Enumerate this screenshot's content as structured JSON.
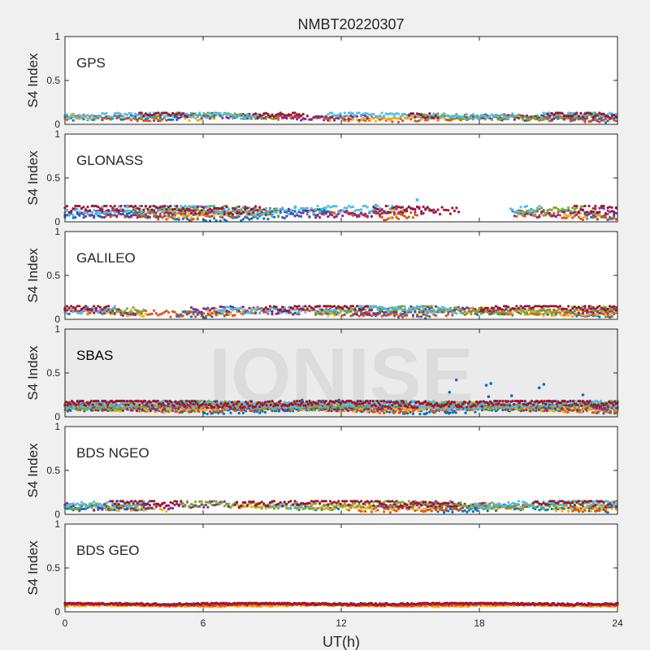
{
  "figure": {
    "title": "NMBT20220307",
    "xlabel": "UT(h)",
    "xticks": [
      "0",
      "6",
      "12",
      "18",
      "24"
    ],
    "watermark": "IONISE",
    "background": "#f0f0f0",
    "axes_background": "#ffffff",
    "axis_color": "#262626"
  },
  "chart_data": [
    {
      "type": "scatter",
      "panel_label": "GPS",
      "ylabel": "S4 Index",
      "yticks": [
        "0",
        "0.5",
        "1"
      ],
      "xlim": [
        0,
        24
      ],
      "ylim": [
        0,
        1
      ],
      "series_colors": [
        "#0072BD",
        "#D95319",
        "#EDB120",
        "#7E2F8E",
        "#77AC30",
        "#4DBEEE",
        "#A2142F"
      ],
      "typical_range": [
        0.03,
        0.13
      ]
    },
    {
      "type": "scatter",
      "panel_label": "GLONASS",
      "ylabel": "S4 Index",
      "yticks": [
        "0",
        "0.5",
        "1"
      ],
      "xlim": [
        0,
        24
      ],
      "ylim": [
        0,
        1
      ],
      "series_colors": [
        "#0072BD",
        "#D95319",
        "#EDB120",
        "#7E2F8E",
        "#77AC30",
        "#4DBEEE",
        "#A2142F"
      ],
      "typical_range": [
        0.03,
        0.18
      ],
      "peaks": [
        {
          "x": 2.7,
          "y": 0.17
        },
        {
          "x": 10.0,
          "y": 0.17
        },
        {
          "x": 13.5,
          "y": 0.19
        },
        {
          "x": 15.3,
          "y": 0.25
        }
      ]
    },
    {
      "type": "scatter",
      "panel_label": "GALILEO",
      "ylabel": "S4 Index",
      "yticks": [
        "0",
        "0.5",
        "1"
      ],
      "xlim": [
        0,
        24
      ],
      "ylim": [
        0,
        1
      ],
      "series_colors": [
        "#0072BD",
        "#D95319",
        "#EDB120",
        "#7E2F8E",
        "#77AC30",
        "#4DBEEE",
        "#A2142F"
      ],
      "typical_range": [
        0.03,
        0.15
      ]
    },
    {
      "type": "scatter",
      "panel_label": "SBAS",
      "ylabel": "S4 Index",
      "yticks": [
        "0",
        "0.5",
        "1"
      ],
      "xlim": [
        0,
        24
      ],
      "ylim": [
        0,
        1
      ],
      "series_colors": [
        "#0072BD",
        "#D95319",
        "#EDB120",
        "#7E2F8E",
        "#77AC30",
        "#4DBEEE",
        "#A2142F"
      ],
      "typical_range": [
        0.05,
        0.18
      ],
      "outliers": [
        {
          "x": 10.3,
          "y": 0.19
        },
        {
          "x": 11.2,
          "y": 0.18
        },
        {
          "x": 11.9,
          "y": 0.19
        },
        {
          "x": 16.7,
          "y": 0.28
        },
        {
          "x": 17.0,
          "y": 0.42
        },
        {
          "x": 18.3,
          "y": 0.36
        },
        {
          "x": 18.5,
          "y": 0.38
        },
        {
          "x": 19.4,
          "y": 0.24
        },
        {
          "x": 20.6,
          "y": 0.33
        },
        {
          "x": 20.8,
          "y": 0.37
        },
        {
          "x": 22.5,
          "y": 0.25
        },
        {
          "x": 18.4,
          "y": 0.23
        }
      ]
    },
    {
      "type": "scatter",
      "panel_label": "BDS NGEO",
      "ylabel": "S4 Index",
      "yticks": [
        "0",
        "0.5",
        "1"
      ],
      "xlim": [
        0,
        24
      ],
      "ylim": [
        0,
        1
      ],
      "series_colors": [
        "#0072BD",
        "#D95319",
        "#EDB120",
        "#7E2F8E",
        "#77AC30",
        "#4DBEEE",
        "#A2142F"
      ],
      "typical_range": [
        0.03,
        0.15
      ]
    },
    {
      "type": "scatter",
      "panel_label": "BDS GEO",
      "ylabel": "S4 Index",
      "yticks": [
        "0",
        "0.5",
        "1"
      ],
      "xlim": [
        0,
        24
      ],
      "ylim": [
        0,
        1
      ],
      "series_colors": [
        "#EDB120",
        "#D95319",
        "#A2142F"
      ],
      "typical_range": [
        0.06,
        0.1
      ]
    }
  ]
}
